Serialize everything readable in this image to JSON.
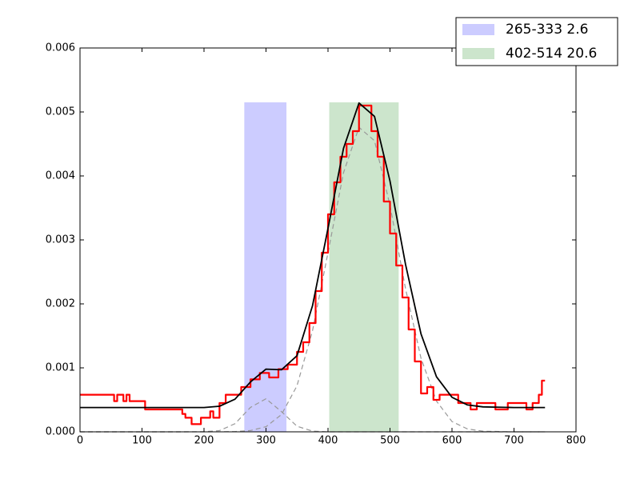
{
  "chart_data": {
    "type": "line",
    "xlim": [
      0,
      800
    ],
    "ylim": [
      0,
      0.006
    ],
    "xticks": [
      0,
      100,
      200,
      300,
      400,
      500,
      600,
      700,
      800
    ],
    "yticks": [
      {
        "value": 0,
        "label": "0.000"
      },
      {
        "value": 0.001,
        "label": "0.001"
      },
      {
        "value": 0.002,
        "label": "0.002"
      },
      {
        "value": 0.003,
        "label": "0.003"
      },
      {
        "value": 0.004,
        "label": "0.004"
      },
      {
        "value": 0.005,
        "label": "0.005"
      },
      {
        "value": 0.006,
        "label": "0.006"
      }
    ],
    "spans": [
      {
        "name": "265-333 2.6",
        "start": 265,
        "end": 333,
        "top": 0.00515,
        "color": "#ccccff"
      },
      {
        "name": "402-514 20.6",
        "start": 402,
        "end": 514,
        "top": 0.00515,
        "color": "#cce5cc"
      }
    ],
    "series": [
      {
        "color": "#999999",
        "dashed": true,
        "width": 1.2,
        "x": [
          0,
          50,
          100,
          150,
          200,
          225,
          250,
          275,
          300,
          325,
          350,
          375,
          400,
          425,
          450,
          475,
          500,
          525,
          550,
          575,
          600,
          625,
          650,
          700,
          750
        ],
        "values": [
          0,
          0,
          0,
          0,
          1.3e-06,
          1.9e-05,
          0.000127,
          0.000382,
          0.000517,
          0.000315,
          8.7e-05,
          1.1e-05,
          0,
          0,
          0,
          0,
          0,
          0,
          0,
          0,
          0,
          0,
          0,
          0,
          0
        ]
      },
      {
        "color": "#999999",
        "dashed": true,
        "width": 1.2,
        "x": [
          0,
          50,
          100,
          150,
          200,
          225,
          250,
          275,
          300,
          325,
          350,
          375,
          400,
          425,
          450,
          475,
          500,
          525,
          550,
          575,
          600,
          625,
          650,
          700,
          750
        ],
        "values": [
          0,
          0,
          0,
          0,
          0,
          1e-06,
          4e-06,
          2e-05,
          8e-05,
          0.00027,
          0.00072,
          0.00158,
          0.0028,
          0.00405,
          0.00476,
          0.00455,
          0.00354,
          0.00224,
          0.00115,
          0.00048,
          0.00016,
          4.5e-05,
          1e-05,
          0,
          0
        ]
      },
      {
        "color": "#ff0000",
        "step": true,
        "width": 2.2,
        "x": [
          0,
          55,
          60,
          70,
          75,
          80,
          105,
          165,
          170,
          180,
          195,
          210,
          215,
          225,
          235,
          260,
          275,
          290,
          305,
          320,
          335,
          350,
          360,
          370,
          380,
          390,
          400,
          410,
          420,
          430,
          440,
          450,
          470,
          480,
          490,
          500,
          510,
          520,
          530,
          540,
          550,
          560,
          570,
          580,
          610,
          630,
          640,
          670,
          690,
          720,
          730,
          740,
          745,
          750
        ],
        "values": [
          0.00058,
          0.00048,
          0.00058,
          0.00048,
          0.00058,
          0.00048,
          0.00035,
          0.00028,
          0.00022,
          0.00012,
          0.00022,
          0.00032,
          0.00022,
          0.00045,
          0.00058,
          0.0007,
          0.00082,
          0.00092,
          0.00085,
          0.00098,
          0.00105,
          0.00125,
          0.0014,
          0.0017,
          0.0022,
          0.0028,
          0.0034,
          0.0039,
          0.0043,
          0.0045,
          0.0047,
          0.0051,
          0.0047,
          0.0043,
          0.0036,
          0.0031,
          0.0026,
          0.0021,
          0.0016,
          0.0011,
          0.0006,
          0.0007,
          0.0005,
          0.00058,
          0.00045,
          0.00035,
          0.00045,
          0.00035,
          0.00045,
          0.00035,
          0.00045,
          0.00058,
          0.0008,
          0.0008
        ]
      },
      {
        "color": "#000000",
        "width": 1.8,
        "x": [
          0,
          50,
          100,
          150,
          200,
          225,
          250,
          275,
          300,
          325,
          350,
          375,
          400,
          425,
          450,
          475,
          500,
          525,
          550,
          575,
          600,
          625,
          650,
          700,
          750
        ],
        "values": [
          0.00038,
          0.00038,
          0.00038,
          0.00038,
          0.00038,
          0.0004,
          0.00051,
          0.00078,
          0.00098,
          0.00097,
          0.00119,
          0.00197,
          0.00318,
          0.00443,
          0.00514,
          0.00493,
          0.00392,
          0.00262,
          0.00153,
          0.00086,
          0.00054,
          0.00042,
          0.00039,
          0.00038,
          0.00038
        ]
      }
    ]
  }
}
